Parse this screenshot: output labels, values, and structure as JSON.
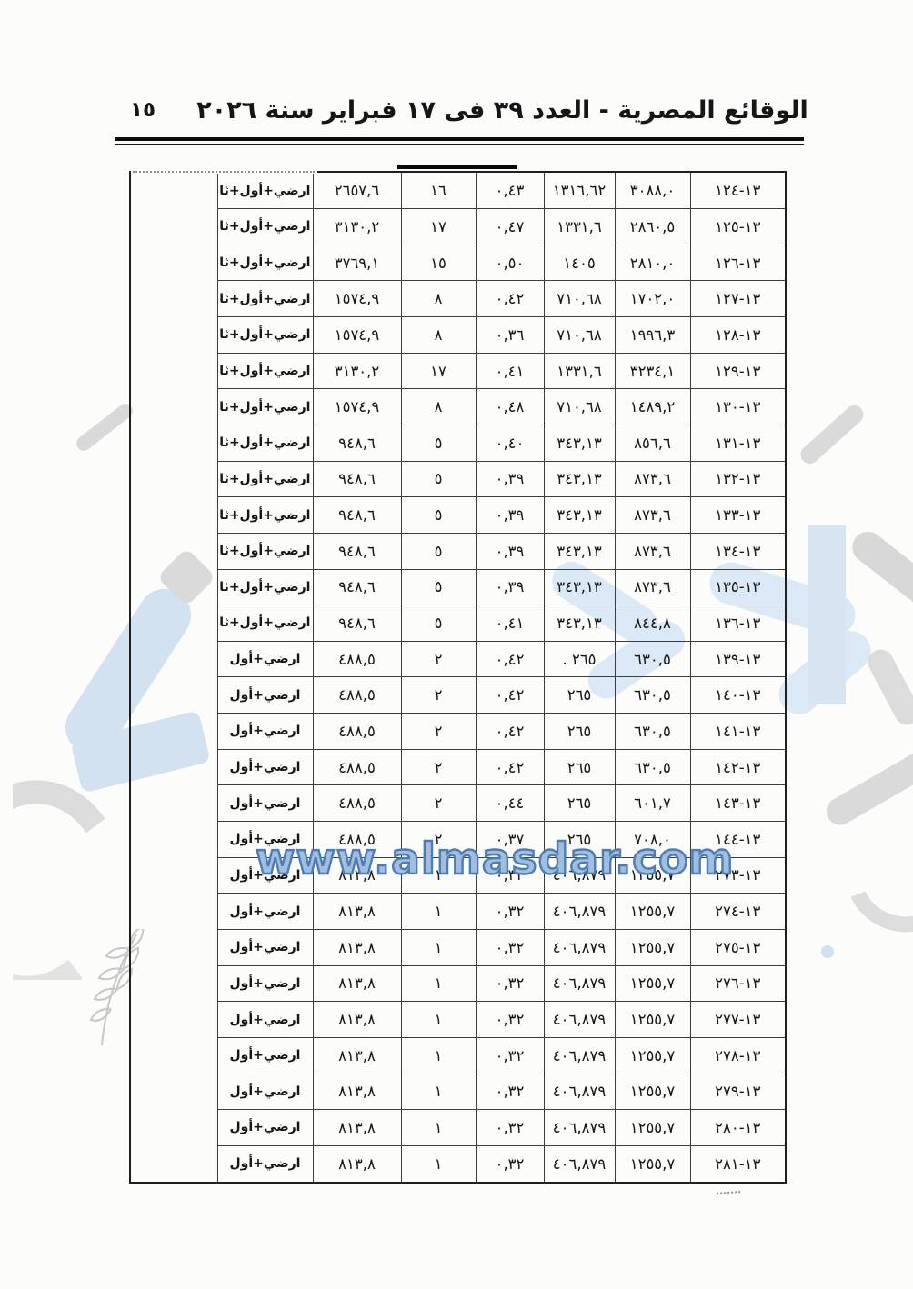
{
  "header": {
    "page_number": "١٥",
    "title": "الوقائع المصرية - العدد ٣٩ فى ١٧ فبراير سنة ٢٠٢٦"
  },
  "watermark": {
    "url_text": "www.almasdar.com",
    "accent_blue": "#4c7db8",
    "pale_blue": "#d7e5f3",
    "gray": "#d9d9d9"
  },
  "table": {
    "rows": [
      {
        "id": "١٣-١٢٤",
        "a": "٣٠٨٨,٠",
        "b": "١٣١٦,٦٢",
        "c": "٠,٤٣",
        "d": "١٦",
        "e": "٢٦٥٧,٦",
        "f": "ارضي+أول+ثاني"
      },
      {
        "id": "١٣-١٢٥",
        "a": "٢٨٦٠,٥",
        "b": "١٣٣١,٦",
        "c": "٠,٤٧",
        "d": "١٧",
        "e": "٣١٣٠,٢",
        "f": "ارضي+أول+ثاني"
      },
      {
        "id": "١٣-١٢٦",
        "a": "٢٨١٠,٠",
        "b": "١٤٠٥",
        "c": "٠,٥٠",
        "d": "١٥",
        "e": "٣٧٦٩,١",
        "f": "ارضي+أول+ثاني"
      },
      {
        "id": "١٣-١٢٧",
        "a": "١٧٠٢,٠",
        "b": "٧١٠,٦٨",
        "c": "٠,٤٢",
        "d": "٨",
        "e": "١٥٧٤,٩",
        "f": "ارضي+أول+ثاني"
      },
      {
        "id": "١٣-١٢٨",
        "a": "١٩٩٦,٣",
        "b": "٧١٠,٦٨",
        "c": "٠,٣٦",
        "d": "٨",
        "e": "١٥٧٤,٩",
        "f": "ارضي+أول+ثاني"
      },
      {
        "id": "١٣-١٢٩",
        "a": "٣٢٣٤,١",
        "b": "١٣٣١,٦",
        "c": "٠,٤١",
        "d": "١٧",
        "e": "٣١٣٠,٢",
        "f": "ارضي+أول+ثاني"
      },
      {
        "id": "١٣-١٣٠",
        "a": "١٤٨٩,٢",
        "b": "٧١٠,٦٨",
        "c": "٠,٤٨",
        "d": "٨",
        "e": "١٥٧٤,٩",
        "f": "ارضي+أول+ثاني"
      },
      {
        "id": "١٣-١٣١",
        "a": "٨٥٦,٦",
        "b": "٣٤٣,١٣",
        "c": "٠,٤٠",
        "d": "٥",
        "e": "٩٤٨,٦",
        "f": "ارضي+أول+ثاني"
      },
      {
        "id": "١٣-١٣٢",
        "a": "٨٧٣,٦",
        "b": "٣٤٣,١٣",
        "c": "٠,٣٩",
        "d": "٥",
        "e": "٩٤٨,٦",
        "f": "ارضي+أول+ثاني"
      },
      {
        "id": "١٣-١٣٣",
        "a": "٨٧٣,٦",
        "b": "٣٤٣,١٣",
        "c": "٠,٣٩",
        "d": "٥",
        "e": "٩٤٨,٦",
        "f": "ارضي+أول+ثاني"
      },
      {
        "id": "١٣-١٣٤",
        "a": "٨٧٣,٦",
        "b": "٣٤٣,١٣",
        "c": "٠,٣٩",
        "d": "٥",
        "e": "٩٤٨,٦",
        "f": "ارضي+أول+ثاني"
      },
      {
        "id": "١٣-١٣٥",
        "a": "٨٧٣,٦",
        "b": "٣٤٣,١٣",
        "c": "٠,٣٩",
        "d": "٥",
        "e": "٩٤٨,٦",
        "f": "ارضي+أول+ثاني"
      },
      {
        "id": "١٣-١٣٦",
        "a": "٨٤٤,٨",
        "b": "٣٤٣,١٣",
        "c": "٠,٤١",
        "d": "٥",
        "e": "٩٤٨,٦",
        "f": "ارضي+أول+ثاني"
      },
      {
        "id": "١٣-١٣٩",
        "a": "٦٣٠,٥",
        "b": "٢٦٥ .",
        "c": "٠,٤٢",
        "d": "٢",
        "e": "٤٨٨,٥",
        "f": "ارضي+أول"
      },
      {
        "id": "١٣-١٤٠",
        "a": "٦٣٠,٥",
        "b": "٢٦٥",
        "c": "٠,٤٢",
        "d": "٢",
        "e": "٤٨٨,٥",
        "f": "ارضي+أول"
      },
      {
        "id": "١٣-١٤١",
        "a": "٦٣٠,٥",
        "b": "٢٦٥",
        "c": "٠,٤٢",
        "d": "٢",
        "e": "٤٨٨,٥",
        "f": "ارضي+أول"
      },
      {
        "id": "١٣-١٤٢",
        "a": "٦٣٠,٥",
        "b": "٢٦٥",
        "c": "٠,٤٢",
        "d": "٢",
        "e": "٤٨٨,٥",
        "f": "ارضي+أول"
      },
      {
        "id": "١٣-١٤٣",
        "a": "٦٠١,٧",
        "b": "٢٦٥",
        "c": "٠,٤٤",
        "d": "٢",
        "e": "٤٨٨,٥",
        "f": "ارضي+أول"
      },
      {
        "id": "١٣-١٤٤",
        "a": "٧٠٨,٠",
        "b": "٢٦٥",
        "c": "٠,٣٧",
        "d": "٢",
        "e": "٤٨٨,٥",
        "f": "ارضي+أول"
      },
      {
        "id": "١٣-٢٧٣",
        "a": "١٢٥٥,٧",
        "b": "٤٠٦,٨٧٩",
        "c": "٠,٣٢",
        "d": "١",
        "e": "٨١٣,٨",
        "f": "ارضي+أول"
      },
      {
        "id": "١٣-٢٧٤",
        "a": "١٢٥٥,٧",
        "b": "٤٠٦,٨٧٩",
        "c": "٠,٣٢",
        "d": "١",
        "e": "٨١٣,٨",
        "f": "ارضي+أول"
      },
      {
        "id": "١٣-٢٧٥",
        "a": "١٢٥٥,٧",
        "b": "٤٠٦,٨٧٩",
        "c": "٠,٣٢",
        "d": "١",
        "e": "٨١٣,٨",
        "f": "ارضي+أول"
      },
      {
        "id": "١٣-٢٧٦",
        "a": "١٢٥٥,٧",
        "b": "٤٠٦,٨٧٩",
        "c": "٠,٣٢",
        "d": "١",
        "e": "٨١٣,٨",
        "f": "ارضي+أول"
      },
      {
        "id": "١٣-٢٧٧",
        "a": "١٢٥٥,٧",
        "b": "٤٠٦,٨٧٩",
        "c": "٠,٣٢",
        "d": "١",
        "e": "٨١٣,٨",
        "f": "ارضي+أول"
      },
      {
        "id": "١٣-٢٧٨",
        "a": "١٢٥٥,٧",
        "b": "٤٠٦,٨٧٩",
        "c": "٠,٣٢",
        "d": "١",
        "e": "٨١٣,٨",
        "f": "ارضي+أول"
      },
      {
        "id": "١٣-٢٧٩",
        "a": "١٢٥٥,٧",
        "b": "٤٠٦,٨٧٩",
        "c": "٠,٣٢",
        "d": "١",
        "e": "٨١٣,٨",
        "f": "ارضي+أول"
      },
      {
        "id": "١٣-٢٨٠",
        "a": "١٢٥٥,٧",
        "b": "٤٠٦,٨٧٩",
        "c": "٠,٣٢",
        "d": "١",
        "e": "٨١٣,٨",
        "f": "ارضي+أول"
      },
      {
        "id": "١٣-٢٨١",
        "a": "١٢٥٥,٧",
        "b": "٤٠٦,٨٧٩",
        "c": "٠,٣٢",
        "d": "١",
        "e": "٨١٣,٨",
        "f": "ارضي+أول"
      }
    ]
  }
}
